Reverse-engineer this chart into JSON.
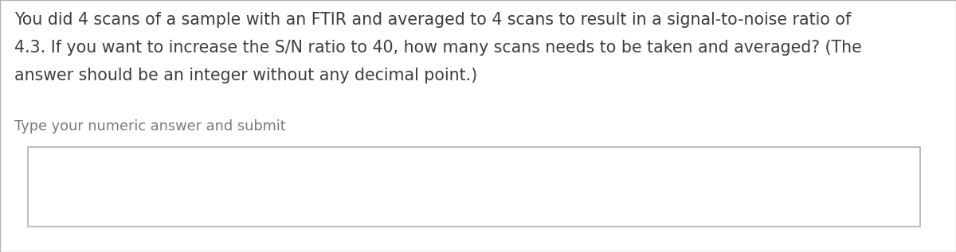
{
  "background_color": "#e8e8e8",
  "content_background": "#ffffff",
  "question_text_line1": "You did 4 scans of a sample with an FTIR and averaged to 4 scans to result in a signal-to-noise ratio of",
  "question_text_line2": "4.3. If you want to increase the S/N ratio to 40, how many scans needs to be taken and averaged? (The",
  "question_text_line3": "answer should be an integer without any decimal point.)",
  "prompt_text": "Type your numeric answer and submit",
  "text_color": "#3d3d3d",
  "prompt_color": "#7a7a7a",
  "box_edge_color": "#b0b0b0",
  "question_fontsize": 14.8,
  "prompt_fontsize": 12.8,
  "font_family": "DejaVu Sans"
}
